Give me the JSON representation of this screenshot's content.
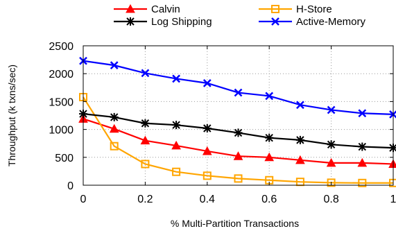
{
  "chart_data": {
    "type": "line",
    "title": "",
    "xlabel": "% Multi-Partition Transactions",
    "ylabel": "Throughput (k txns/sec)",
    "xlim": [
      0,
      1
    ],
    "ylim": [
      0,
      2500
    ],
    "xticks": [
      0,
      0.2,
      0.4,
      0.6,
      0.8,
      1
    ],
    "xtick_labels": [
      "0",
      "0.2",
      "0.4",
      "0.6",
      "0.8",
      "1"
    ],
    "yticks": [
      0,
      500,
      1000,
      1500,
      2000,
      2500
    ],
    "ytick_labels": [
      "0",
      "500",
      "1000",
      "1500",
      "2000",
      "2500"
    ],
    "grid": "dotted horizontal and vertical",
    "legend_position": "top, outside plot, two columns",
    "x": [
      0,
      0.1,
      0.2,
      0.3,
      0.4,
      0.5,
      0.6,
      0.7,
      0.8,
      0.9,
      1.0
    ],
    "series": [
      {
        "name": "Calvin",
        "color": "#ff0000",
        "marker": "triangle",
        "values": [
          1190,
          1010,
          800,
          710,
          610,
          520,
          500,
          450,
          400,
          400,
          380
        ]
      },
      {
        "name": "H-Store",
        "color": "#ffa500",
        "marker": "square",
        "values": [
          1580,
          700,
          380,
          240,
          170,
          120,
          90,
          60,
          45,
          40,
          40
        ]
      },
      {
        "name": "Log Shipping",
        "color": "#000000",
        "marker": "star",
        "values": [
          1280,
          1220,
          1110,
          1080,
          1020,
          940,
          850,
          810,
          730,
          690,
          670
        ]
      },
      {
        "name": "Active-Memory",
        "color": "#0000ff",
        "marker": "x",
        "values": [
          2230,
          2150,
          2010,
          1910,
          1830,
          1660,
          1600,
          1440,
          1350,
          1290,
          1270
        ]
      }
    ]
  }
}
